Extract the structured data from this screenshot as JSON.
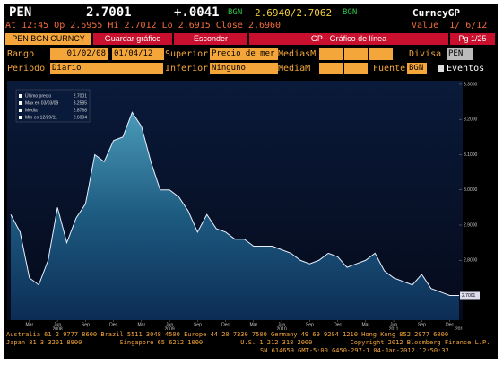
{
  "header": {
    "ticker": "PEN",
    "price": "2.7001",
    "change": "+.0041",
    "source1": "BGN",
    "bidask": "2.6940/2.7062",
    "source2": "BGN",
    "security": "CurncyGP",
    "quote": "At 12:45 Op 2.6955 Hi 2.7012 Lo 2.6915 Close 2.6960",
    "value": "Value  1/ 6/12"
  },
  "tabs": {
    "security": "PEN BGN CURNCY",
    "save": "Guardar gráfico",
    "hide": "Esconder",
    "function": "GP - Gráfico de línea",
    "page": "Pg 1/25"
  },
  "fields": {
    "range_label": "Rango",
    "start": "01/02/08",
    "dash": "-",
    "end": "01/04/12",
    "upper_label": "Superior",
    "upper": "Precio de mer",
    "ma_label": "MediasM",
    "currency_label": "Divisa",
    "currency": "PEN",
    "period_label": "Periodo",
    "period": "Diario",
    "lower_label": "Inferior",
    "lower": "Ninguno",
    "ma2_label": "MediaM",
    "source_label": "Fuente",
    "source": "BGN",
    "events": "Eventos"
  },
  "chart_data": {
    "type": "area",
    "color": "#e8f0ff",
    "categories": [
      null,
      null,
      "Mar",
      null,
      null,
      "Jun",
      null,
      null,
      "Sep",
      null,
      null,
      "Dec",
      null,
      null,
      "Mar",
      null,
      null,
      "Jun",
      null,
      null,
      "Sep",
      null,
      null,
      "Dec",
      null,
      null,
      "Mar",
      null,
      null,
      "Jun",
      null,
      null,
      "Sep",
      null,
      null,
      "Dec",
      null,
      null,
      "Mar",
      null,
      null,
      "Jun",
      null,
      null,
      "Sep",
      null,
      null,
      "Dec",
      null
    ],
    "years": [
      null,
      null,
      null,
      null,
      null,
      "2008",
      null,
      null,
      null,
      null,
      null,
      null,
      null,
      null,
      null,
      null,
      null,
      "2009",
      null,
      null,
      null,
      null,
      null,
      null,
      null,
      null,
      null,
      null,
      null,
      "2010",
      null,
      null,
      null,
      null,
      null,
      null,
      null,
      null,
      null,
      null,
      null,
      "2011",
      null,
      null,
      null,
      null,
      null,
      null,
      "201"
    ],
    "values": [
      2.93,
      2.88,
      2.75,
      2.73,
      2.8,
      2.95,
      2.85,
      2.92,
      2.96,
      3.1,
      3.08,
      3.14,
      3.15,
      3.22,
      3.18,
      3.08,
      3.0,
      3.0,
      2.98,
      2.94,
      2.88,
      2.93,
      2.89,
      2.88,
      2.86,
      2.86,
      2.84,
      2.84,
      2.84,
      2.83,
      2.82,
      2.8,
      2.79,
      2.8,
      2.82,
      2.81,
      2.78,
      2.79,
      2.8,
      2.82,
      2.77,
      2.75,
      2.74,
      2.73,
      2.76,
      2.72,
      2.71,
      2.7,
      2.7
    ],
    "ylim": [
      2.63,
      3.31
    ],
    "yticks": [
      {
        "value": 2.8,
        "label": "2.8000"
      },
      {
        "value": 2.9,
        "label": "2.9000"
      },
      {
        "value": 3.0,
        "label": "3.0000"
      },
      {
        "value": 3.1,
        "label": "3.1000"
      },
      {
        "value": 3.2,
        "label": "3.2000"
      },
      {
        "value": 3.3,
        "label": "3.3000"
      }
    ],
    "last_price": 2.7001,
    "stats": [
      {
        "label": "Último precio",
        "value": 2.7001
      },
      {
        "label": "Máx en 03/03/09",
        "value": 3.2585
      },
      {
        "label": "Media",
        "value": 2.8768
      },
      {
        "label": "Mín en 12/29/11",
        "value": 2.6904
      }
    ]
  },
  "footer": {
    "line1": "Australia 61 2 9777 8600 Brazil 5511 3048 4500 Europe 44 20 7330 7500 Germany 49 69 9204 1210 Hong Kong 852 2977 6000",
    "line2": "Japan 81 3 3201 8900          Singapore 65 6212 1000          U.S. 1 212 318 2000          Copyright 2012 Bloomberg Finance L.P.",
    "line3": "SN 614659 GMT-5:00 G450-297-1 04-Jan-2012 12:50:32"
  }
}
